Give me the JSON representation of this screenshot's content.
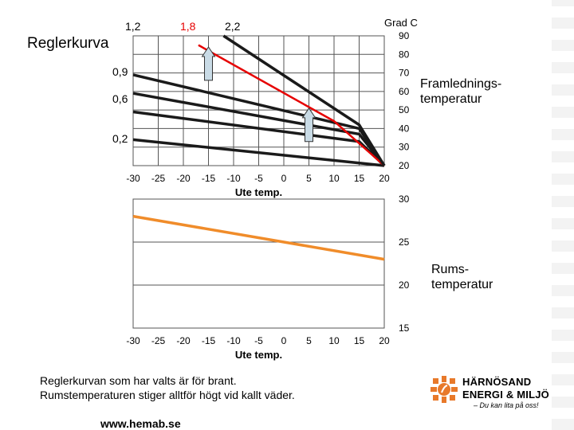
{
  "slide": {
    "title": "Reglerkurva",
    "unit_label": "Grad C",
    "right_label_top": "Framlednings-\ntemperatur",
    "right_label_bottom": "Rums-\ntemperatur",
    "curve_labels_top": [
      "1,2",
      "1,8",
      "2,2"
    ],
    "curve_labels_left": [
      "0,9",
      "0,6",
      "0,2"
    ],
    "note_line1": "Reglerkurvan som har valts är för brant.",
    "note_line2": "Rumstemperaturen stiger alltför högt vid kallt väder.",
    "url": "www.hemab.se",
    "logo_line1": "HÄRNÖSAND",
    "logo_line2": "ENERGI & MILJÖ",
    "logo_tagline": "– Du kan lita på oss!"
  },
  "colors": {
    "curve": "#1a1a1a",
    "highlight": "#e60000",
    "room_line": "#f08c2a",
    "arrow_fill": "#c9dbe6",
    "logo_orange": "#e8792a"
  },
  "chart_data": [
    {
      "type": "line",
      "title": "",
      "xlabel": "Ute temp.",
      "ylabel": "Grad C",
      "x_ticks": [
        -30,
        -25,
        -20,
        -15,
        -10,
        -5,
        0,
        5,
        10,
        15,
        20
      ],
      "y_ticks": [
        20,
        30,
        40,
        50,
        60,
        70,
        80,
        90
      ],
      "xlim": [
        -30,
        20
      ],
      "ylim": [
        20,
        90
      ],
      "grid": true,
      "series": [
        {
          "name": "0,2",
          "x": [
            -30,
            20
          ],
          "y": [
            34,
            20
          ]
        },
        {
          "name": "0,6",
          "x": [
            -30,
            15,
            20
          ],
          "y": [
            49,
            33,
            20
          ]
        },
        {
          "name": "0,9",
          "x": [
            -30,
            15,
            20
          ],
          "y": [
            59,
            37,
            20
          ]
        },
        {
          "name": "1,2",
          "x": [
            -30,
            15,
            20
          ],
          "y": [
            69,
            40,
            20
          ]
        },
        {
          "name": "1,8",
          "x": [
            -17,
            10,
            20
          ],
          "y": [
            85,
            44,
            20
          ],
          "highlight": true
        },
        {
          "name": "2,2",
          "x": [
            -12,
            15,
            20
          ],
          "y": [
            90,
            42,
            20
          ]
        }
      ],
      "arrows": [
        {
          "x": -15,
          "from": 66,
          "to": 84
        },
        {
          "x": 5,
          "from": 33,
          "to": 51
        }
      ]
    },
    {
      "type": "line",
      "title": "",
      "xlabel": "Ute temp.",
      "ylabel": "",
      "x_ticks": [
        -30,
        -25,
        -20,
        -15,
        -10,
        -5,
        0,
        5,
        10,
        15,
        20
      ],
      "y_ticks": [
        15,
        20,
        25,
        30
      ],
      "xlim": [
        -30,
        20
      ],
      "ylim": [
        15,
        30
      ],
      "grid": true,
      "series": [
        {
          "x": [
            -30,
            20
          ],
          "y": [
            28.0,
            23.0
          ]
        }
      ]
    }
  ]
}
